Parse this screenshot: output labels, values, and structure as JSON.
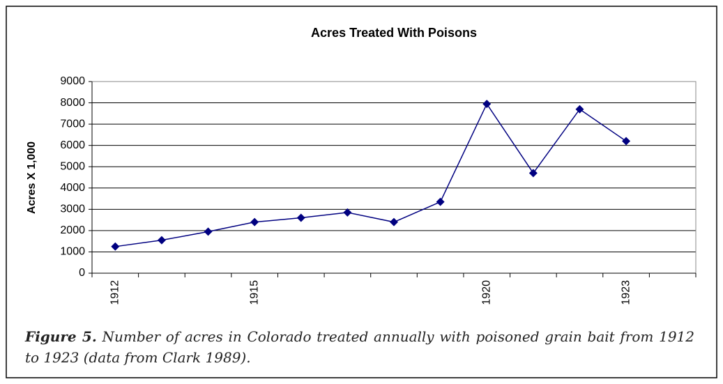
{
  "chart_data": {
    "type": "line",
    "title": "Acres Treated With Poisons",
    "y_label": "Acres X 1,000",
    "categories": [
      "1912",
      null,
      null,
      "1915",
      null,
      null,
      null,
      null,
      "1920",
      null,
      null,
      "1923",
      null
    ],
    "series": [
      {
        "name": "Acres",
        "color": "#000080",
        "values": [
          1250,
          1550,
          1950,
          2400,
          2600,
          2850,
          2400,
          3350,
          7950,
          4700,
          7700,
          6200,
          null
        ]
      }
    ],
    "ylim": [
      0,
      9000
    ],
    "yticks": [
      0,
      1000,
      2000,
      3000,
      4000,
      5000,
      6000,
      7000,
      8000,
      9000
    ],
    "grid": true,
    "caption": {
      "label": "Figure 5.",
      "text": "Number of acres in Colorado treated annually with poisoned grain bait from 1912 to 1923 (data from Clark 1989)."
    }
  }
}
